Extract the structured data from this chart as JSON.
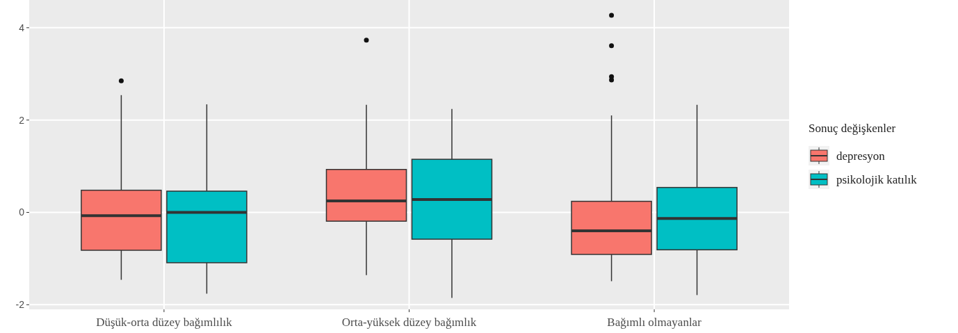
{
  "chart_data": {
    "type": "box",
    "categories": [
      "Düşük-orta düzey bağımlılık",
      "Orta-yüksek düzey bağımlık",
      "Bağımlı olmayanlar"
    ],
    "legend_title": "Sonuç değişkenler",
    "legend": "right",
    "grid": true,
    "ylim": [
      -2.1,
      4.6
    ],
    "yticks": [
      -2,
      0,
      2,
      4
    ],
    "series": [
      {
        "name": "depresyon",
        "color": "#f8766d",
        "boxes": [
          {
            "low": -1.46,
            "q1": -0.82,
            "median": -0.07,
            "q3": 0.48,
            "high": 2.54,
            "outliers": [
              2.85
            ]
          },
          {
            "low": -1.36,
            "q1": -0.19,
            "median": 0.25,
            "q3": 0.93,
            "high": 2.33,
            "outliers": [
              3.73
            ]
          },
          {
            "low": -1.49,
            "q1": -0.91,
            "median": -0.4,
            "q3": 0.24,
            "high": 2.1,
            "outliers": [
              4.27,
              3.61,
              2.94,
              2.87
            ]
          }
        ]
      },
      {
        "name": "psikolojik katılık",
        "color": "#00bfc4",
        "boxes": [
          {
            "low": -1.76,
            "q1": -1.09,
            "median": 0,
            "q3": 0.46,
            "high": 2.34
          },
          {
            "low": -1.85,
            "q1": -0.58,
            "median": 0.28,
            "q3": 1.15,
            "high": 2.24
          },
          {
            "low": -1.79,
            "q1": -0.81,
            "median": -0.13,
            "q3": 0.54,
            "high": 2.33
          }
        ]
      }
    ]
  }
}
